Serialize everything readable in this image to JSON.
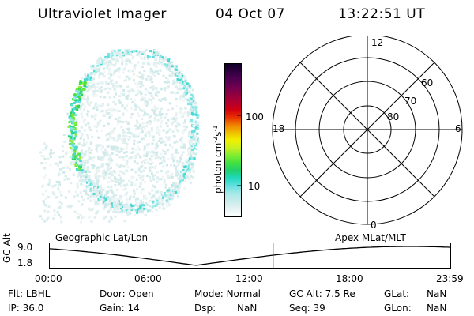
{
  "header": {
    "instrument": "Ultraviolet Imager",
    "date": "04 Oct 07",
    "time": "13:22:51 UT"
  },
  "colorbar": {
    "unit_label": "photon cm",
    "unit_sup1": "-2",
    "unit_mid": "s",
    "unit_sup2": "-1",
    "tick_100": "100",
    "tick_10": "10",
    "colors": [
      "#ffffff",
      "#e6f2f2",
      "#c8ecec",
      "#a8e8e8",
      "#66e0e0",
      "#22d8c0",
      "#20d070",
      "#40e040",
      "#80ec30",
      "#c8f020",
      "#f0f000",
      "#f0c000",
      "#f08000",
      "#e83000",
      "#d00010",
      "#b00030",
      "#900040",
      "#700050",
      "#500050",
      "#300040",
      "#100028"
    ]
  },
  "polar": {
    "labels": {
      "mlt_12": "12",
      "mlt_18": "18",
      "mlt_6": "6",
      "mlt_0": "0",
      "lat_60": "60",
      "lat_70": "70",
      "lat_80": "80"
    }
  },
  "timeline": {
    "y_label": "GC Alt",
    "y_max": "9.0",
    "y_min": "1.8",
    "left_title": "Geographic Lat/Lon",
    "right_title": "Apex MLat/MLT",
    "ticks": [
      "00:00",
      "06:00",
      "12:00",
      "18:00",
      "23:59"
    ],
    "current_time_marker": "13:22:51"
  },
  "status": {
    "flt_label": "Flt:",
    "flt_value": "LBHL",
    "door_label": "Door:",
    "door_value": "Open",
    "mode_label": "Mode:",
    "mode_value": "Normal",
    "gcalt_label": "GC Alt:",
    "gcalt_value": "7.5 Re",
    "glat_label": "GLat:",
    "glat_value": "NaN",
    "ip_label": "IP:",
    "ip_value": "36.0",
    "gain_label": "Gain:",
    "gain_value": "14",
    "dsp_label": "Dsp:",
    "dsp_value": "NaN",
    "seq_label": "Seq:",
    "seq_value": "39",
    "glon_label": "GLon:",
    "glon_value": "NaN"
  }
}
